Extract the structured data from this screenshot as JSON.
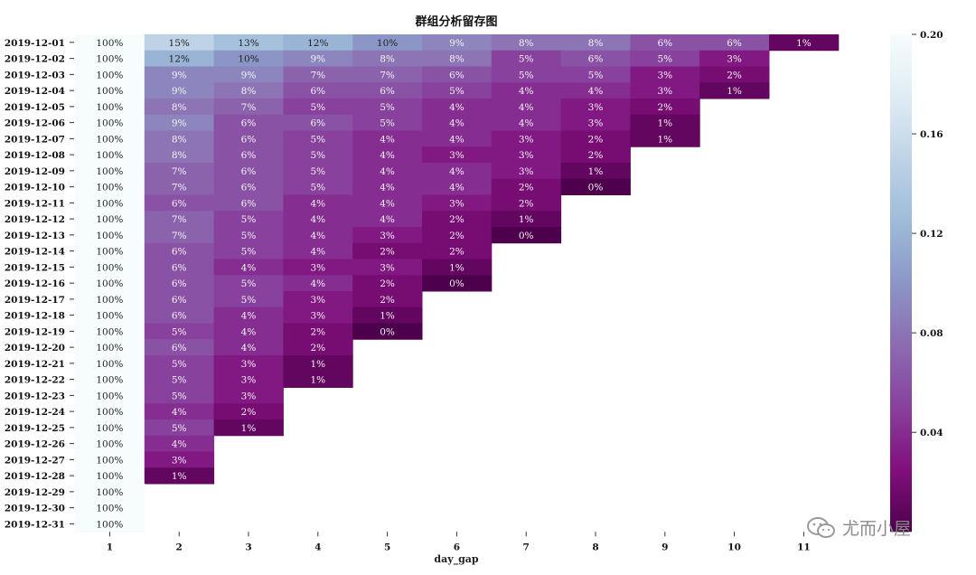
{
  "chart_data": {
    "type": "heatmap",
    "title": "群组分析留存图",
    "xlabel": "day_gap",
    "ylabel": "",
    "x_categories": [
      "1",
      "2",
      "3",
      "4",
      "5",
      "6",
      "7",
      "8",
      "9",
      "10",
      "11"
    ],
    "y_categories": [
      "2019-12-01",
      "2019-12-02",
      "2019-12-03",
      "2019-12-04",
      "2019-12-05",
      "2019-12-06",
      "2019-12-07",
      "2019-12-08",
      "2019-12-09",
      "2019-12-10",
      "2019-12-11",
      "2019-12-12",
      "2019-12-13",
      "2019-12-14",
      "2019-12-15",
      "2019-12-16",
      "2019-12-17",
      "2019-12-18",
      "2019-12-19",
      "2019-12-20",
      "2019-12-21",
      "2019-12-22",
      "2019-12-23",
      "2019-12-24",
      "2019-12-25",
      "2019-12-26",
      "2019-12-27",
      "2019-12-28",
      "2019-12-29",
      "2019-12-30",
      "2019-12-31"
    ],
    "values": [
      [
        1.0,
        0.15,
        0.13,
        0.12,
        0.1,
        0.09,
        0.08,
        0.08,
        0.06,
        0.06,
        0.01
      ],
      [
        1.0,
        0.12,
        0.1,
        0.09,
        0.08,
        0.08,
        0.05,
        0.06,
        0.05,
        0.03
      ],
      [
        1.0,
        0.09,
        0.09,
        0.07,
        0.07,
        0.06,
        0.05,
        0.05,
        0.03,
        0.02
      ],
      [
        1.0,
        0.09,
        0.08,
        0.06,
        0.06,
        0.05,
        0.04,
        0.04,
        0.03,
        0.01
      ],
      [
        1.0,
        0.08,
        0.07,
        0.05,
        0.05,
        0.04,
        0.04,
        0.03,
        0.02
      ],
      [
        1.0,
        0.09,
        0.06,
        0.06,
        0.05,
        0.04,
        0.04,
        0.03,
        0.01
      ],
      [
        1.0,
        0.08,
        0.06,
        0.05,
        0.04,
        0.04,
        0.03,
        0.02,
        0.01
      ],
      [
        1.0,
        0.08,
        0.06,
        0.05,
        0.04,
        0.03,
        0.03,
        0.02
      ],
      [
        1.0,
        0.07,
        0.06,
        0.05,
        0.04,
        0.04,
        0.03,
        0.01
      ],
      [
        1.0,
        0.07,
        0.06,
        0.05,
        0.04,
        0.04,
        0.02,
        0.0
      ],
      [
        1.0,
        0.06,
        0.06,
        0.04,
        0.04,
        0.03,
        0.02
      ],
      [
        1.0,
        0.07,
        0.05,
        0.04,
        0.04,
        0.02,
        0.01
      ],
      [
        1.0,
        0.07,
        0.05,
        0.04,
        0.03,
        0.02,
        0.0
      ],
      [
        1.0,
        0.06,
        0.05,
        0.04,
        0.02,
        0.02
      ],
      [
        1.0,
        0.06,
        0.04,
        0.03,
        0.03,
        0.01
      ],
      [
        1.0,
        0.06,
        0.05,
        0.04,
        0.02,
        0.0
      ],
      [
        1.0,
        0.06,
        0.05,
        0.03,
        0.02
      ],
      [
        1.0,
        0.06,
        0.04,
        0.03,
        0.01
      ],
      [
        1.0,
        0.05,
        0.04,
        0.02,
        0.0
      ],
      [
        1.0,
        0.06,
        0.04,
        0.02
      ],
      [
        1.0,
        0.05,
        0.03,
        0.01
      ],
      [
        1.0,
        0.05,
        0.03,
        0.01
      ],
      [
        1.0,
        0.05,
        0.03
      ],
      [
        1.0,
        0.04,
        0.02
      ],
      [
        1.0,
        0.05,
        0.01
      ],
      [
        1.0,
        0.04
      ],
      [
        1.0,
        0.03
      ],
      [
        1.0,
        0.01
      ],
      [
        1.0
      ],
      [
        1.0
      ],
      [
        1.0
      ]
    ],
    "colorbar": {
      "min": 0.0,
      "max": 0.2,
      "ticks": [
        "0.04",
        "0.08",
        "0.12",
        "0.16",
        "0.20"
      ],
      "colormap": "BuPu_r"
    },
    "annotation_format": "percent",
    "grid": false,
    "legend": "colorbar-right"
  },
  "watermark": {
    "text": "尤而小屋",
    "icon": "wechat-icon"
  }
}
